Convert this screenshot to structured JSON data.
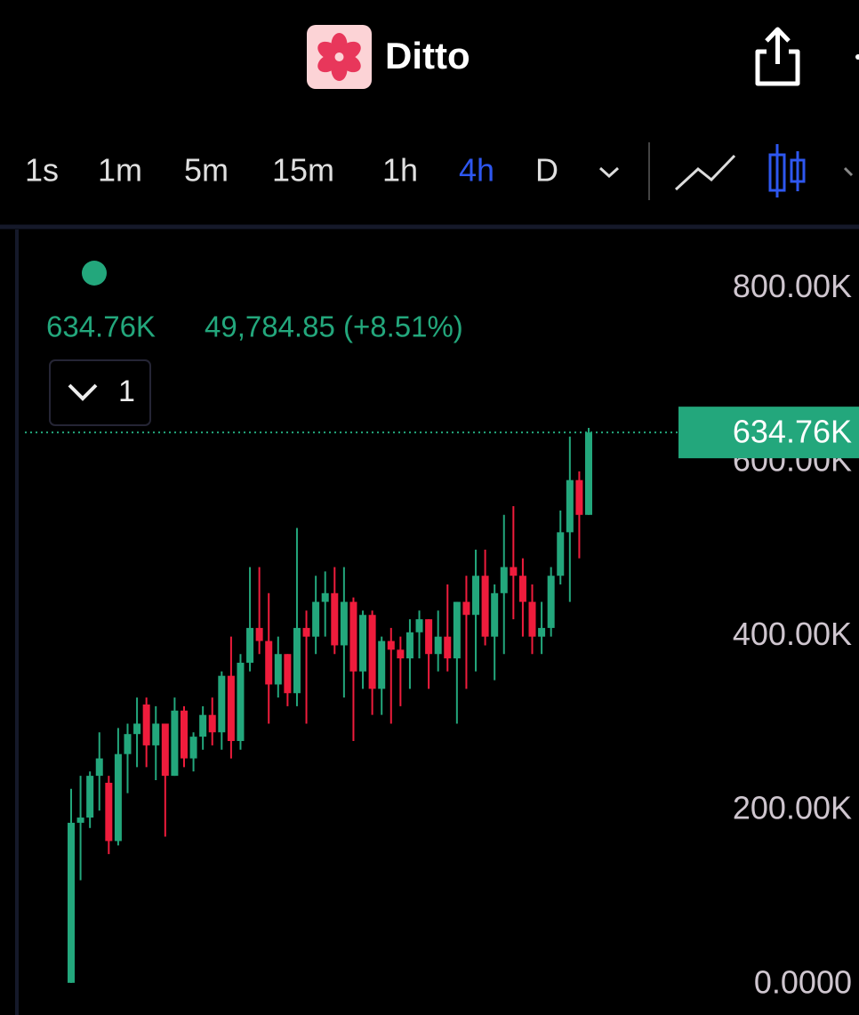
{
  "header": {
    "app_name": "Ditto"
  },
  "toolbar": {
    "timeframes": [
      "1s",
      "1m",
      "5m",
      "15m",
      "1h",
      "4h",
      "D"
    ],
    "active_timeframe": 5
  },
  "legend": {
    "change": "49,784.85 (+8.51%)",
    "indicator_count": "1"
  },
  "chart_data": {
    "type": "candlestick",
    "up_color": "#23a77c",
    "down_color": "#ef1c3c",
    "ylim": [
      -35000,
      864000
    ],
    "yticks": [
      {
        "value": 0,
        "label": "0.0000"
      },
      {
        "value": 200000,
        "label": "200.00K"
      },
      {
        "value": 400000,
        "label": "400.00K"
      },
      {
        "value": 600000,
        "label": "600.00K"
      },
      {
        "value": 800000,
        "label": "800.00K"
      }
    ],
    "last_price": {
      "value": 634760,
      "label": "634.76K"
    },
    "open": [
      2000,
      186000,
      192000,
      240000,
      232000,
      165000,
      265000,
      288000,
      322000,
      275000,
      300000,
      240000,
      315000,
      260000,
      285000,
      310000,
      290000,
      355000,
      280000,
      370000,
      410000,
      395000,
      345000,
      380000,
      335000,
      410000,
      400000,
      440000,
      450000,
      390000,
      440000,
      360000,
      425000,
      340000,
      395000,
      385000,
      375000,
      405000,
      420000,
      380000,
      400000,
      375000,
      440000,
      425000,
      470000,
      400000,
      450000,
      480000,
      470000,
      440000,
      400000,
      410000,
      470000,
      520000,
      580000,
      540000
    ],
    "high": [
      225000,
      240000,
      245000,
      290000,
      240000,
      295000,
      300000,
      330000,
      330000,
      320000,
      300000,
      330000,
      320000,
      290000,
      320000,
      330000,
      360000,
      400000,
      380000,
      480000,
      480000,
      450000,
      400000,
      380000,
      525000,
      430000,
      470000,
      475000,
      480000,
      480000,
      445000,
      430000,
      430000,
      400000,
      410000,
      400000,
      420000,
      430000,
      420000,
      430000,
      460000,
      440000,
      470000,
      500000,
      500000,
      460000,
      540000,
      550000,
      490000,
      460000,
      440000,
      480000,
      545000,
      630000,
      590000,
      640000
    ],
    "low": [
      2000,
      120000,
      180000,
      200000,
      150000,
      160000,
      220000,
      250000,
      250000,
      235000,
      170000,
      240000,
      250000,
      245000,
      270000,
      275000,
      270000,
      260000,
      270000,
      360000,
      380000,
      300000,
      330000,
      320000,
      320000,
      300000,
      380000,
      400000,
      380000,
      330000,
      280000,
      340000,
      310000,
      310000,
      300000,
      320000,
      340000,
      375000,
      340000,
      360000,
      360000,
      300000,
      340000,
      360000,
      390000,
      350000,
      380000,
      420000,
      400000,
      380000,
      380000,
      400000,
      460000,
      440000,
      490000,
      540000
    ],
    "close": [
      186000,
      192000,
      240000,
      260000,
      165000,
      265000,
      288000,
      300000,
      275000,
      300000,
      240000,
      315000,
      260000,
      285000,
      310000,
      290000,
      355000,
      280000,
      370000,
      410000,
      395000,
      345000,
      380000,
      335000,
      410000,
      400000,
      440000,
      450000,
      390000,
      440000,
      360000,
      425000,
      340000,
      395000,
      385000,
      375000,
      405000,
      420000,
      380000,
      400000,
      375000,
      440000,
      425000,
      470000,
      400000,
      450000,
      480000,
      470000,
      440000,
      400000,
      410000,
      470000,
      520000,
      580000,
      540000,
      634760
    ]
  }
}
